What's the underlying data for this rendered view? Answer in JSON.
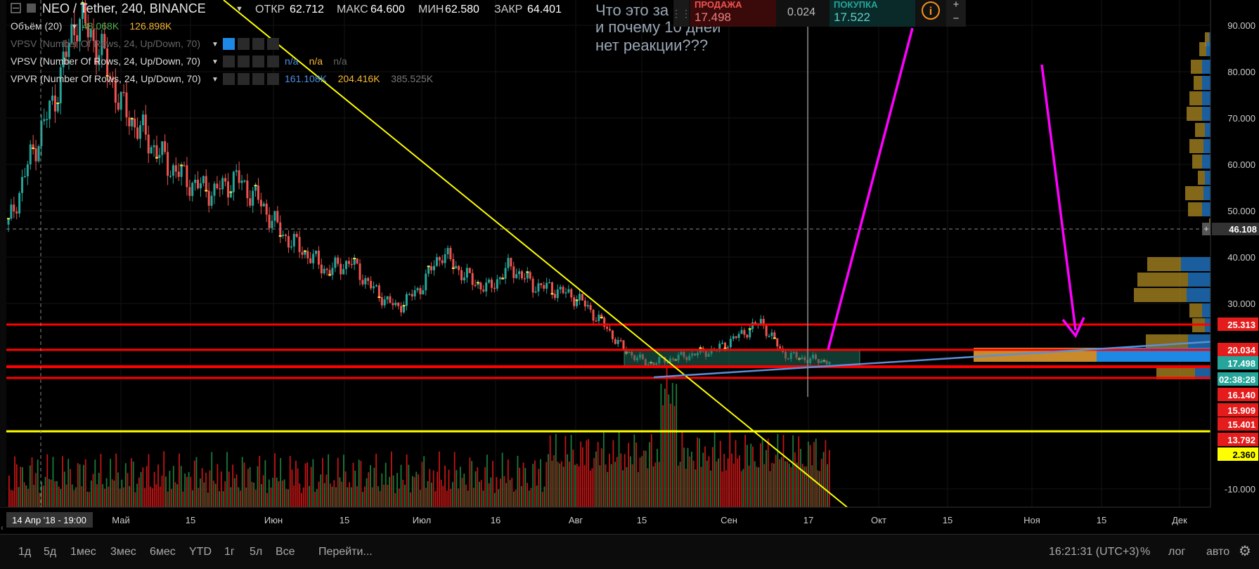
{
  "header": {
    "symbol": "NEO / Tether, 240, BINANCE",
    "open_label": "ОТКР",
    "open_value": "62.712",
    "high_label": "МАКС",
    "high_value": "64.600",
    "low_label": "МИН",
    "low_value": "62.580",
    "close_label": "ЗАКР",
    "close_value": "64.401"
  },
  "indicators": [
    {
      "name": "Объём (20)",
      "values": [
        "48.068K",
        "126.898K"
      ],
      "colors": [
        "#4caf50",
        "#f7b733"
      ]
    },
    {
      "name": "VPSV (Number Of Rows, 24, Up/Down, 70)",
      "values": [],
      "colors": []
    },
    {
      "name": "VPSV (Number Of Rows, 24, Up/Down, 70)",
      "values": [
        "n/a",
        "n/a",
        "n/a"
      ],
      "colors": [
        "#4a90e2",
        "#f7b733",
        "#666666"
      ]
    },
    {
      "name": "VPVR (Number Of Rows, 24, Up/Down, 70)",
      "values": [
        "161.108K",
        "204.416K",
        "385.525K"
      ],
      "colors": [
        "#4a90e2",
        "#f7b733",
        "#777777"
      ]
    }
  ],
  "annotation_text": [
    "Что это за",
    "и почему 10 дней",
    "нет реакции???"
  ],
  "trade_panel": {
    "sell_label": "ПРОДАЖА",
    "sell_value": "17.498",
    "spread": "0.024",
    "buy_label": "ПОКУПКА",
    "buy_value": "17.522",
    "plus": "+",
    "minus": "−"
  },
  "chart_data": {
    "type": "candlestick",
    "y_ticks": [
      "90.000",
      "80.000",
      "70.000",
      "60.000",
      "50.000",
      "40.000",
      "30.000",
      "-10.000"
    ],
    "x_ticks": [
      "Май",
      "15",
      "Июн",
      "15",
      "Июл",
      "16",
      "Авг",
      "15",
      "Сен",
      "17",
      "Окт",
      "15",
      "Ноя",
      "15",
      "Дек"
    ],
    "crosshair_x_label": "14 Апр '18 - 19:00",
    "crosshair_y_label": "46.108",
    "price_badges": [
      {
        "text": "25.313",
        "color": "#e51c1c"
      },
      {
        "text": "20.034",
        "color": "#e51c1c"
      },
      {
        "text": "17.498",
        "color": "#26a69a"
      },
      {
        "text": "02:38:28",
        "color": "#26a69a"
      },
      {
        "text": "16.140",
        "color": "#e51c1c"
      },
      {
        "text": "15.909",
        "color": "#e51c1c"
      },
      {
        "text": "15.401",
        "color": "#e51c1c"
      },
      {
        "text": "13.792",
        "color": "#e51c1c"
      },
      {
        "text": "2.360",
        "color": "#ffff00"
      }
    ],
    "approx_prices": [
      47,
      62,
      74,
      92,
      85,
      72,
      66,
      60,
      56,
      54,
      57,
      52,
      45,
      41,
      37,
      39,
      33,
      29,
      33,
      41,
      36,
      33,
      38,
      34,
      33,
      31,
      26,
      20,
      17,
      18,
      19,
      20,
      23,
      26,
      19,
      18,
      17.5
    ],
    "horizontal_levels": [
      25.313,
      20.034,
      16.14,
      15.401,
      13.792
    ],
    "colors": {
      "up": "#26a69a",
      "down": "#ef5350",
      "level_red": "#ff0000",
      "level_yellow": "#ffff00",
      "trendline": "#ffff00",
      "arrow": "#ff00ff",
      "profile_gold": "#b8860b",
      "profile_blue": "#1e88e5"
    }
  },
  "toolbar": {
    "ranges": [
      "1д",
      "5д",
      "1мес",
      "3мес",
      "6мес",
      "YTD",
      "1г",
      "5л",
      "Все"
    ],
    "goto": "Перейти...",
    "time": "16:21:31 (UTC+3)",
    "percent": "%",
    "log": "лог",
    "auto": "авто"
  }
}
